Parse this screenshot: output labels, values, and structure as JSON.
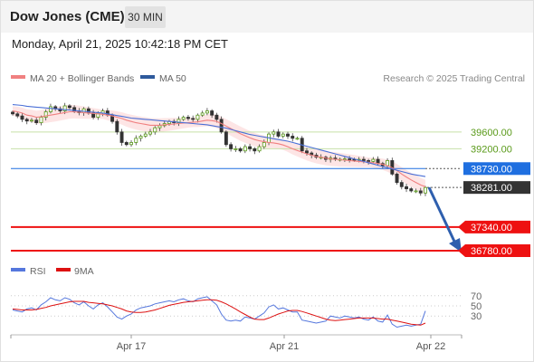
{
  "header": {
    "title": "Dow Jones (CME)",
    "timeframe": "30 MIN"
  },
  "datetime": "Monday, April 21, 2025 10:42:18 PM CET",
  "legend": {
    "ma20": "MA 20 + Bollinger Bands",
    "ma50": "MA 50",
    "credit": "Research © 2025 Trading Central"
  },
  "rsi_legend": {
    "rsi": "RSI",
    "ma9": "9MA"
  },
  "colors": {
    "ma20": "#f08080",
    "band": "#fde0e0",
    "ma50": "#4a6fd6",
    "legend_ma50": "#2e5a9c",
    "support_line": "#c6e0a8",
    "resistance_label": "#5a9a1a",
    "pivot": "#1f6fe0",
    "target": "#ee1111",
    "current": "#333333",
    "arrow": "#2e5fae",
    "rsi": "#5577dd",
    "rsi_ma": "#dd1111"
  },
  "chart_data": {
    "type": "candlestick",
    "title": "Dow Jones (CME)",
    "timeframe": "30 MIN",
    "ylim": [
      36500,
      40800
    ],
    "x_ticks": [
      "Apr 17",
      "Apr 21",
      "Apr 22"
    ],
    "levels": [
      {
        "label": "39600.00",
        "value": 39600,
        "kind": "resistance"
      },
      {
        "label": "39200.00",
        "value": 39200,
        "kind": "resistance"
      },
      {
        "label": "38730.00",
        "value": 38730,
        "kind": "pivot"
      },
      {
        "label": "38281.00",
        "value": 38281,
        "kind": "current"
      },
      {
        "label": "37340.00",
        "value": 37340,
        "kind": "target"
      },
      {
        "label": "36780.00",
        "value": 36780,
        "kind": "target"
      }
    ],
    "series_close": [
      40030,
      39980,
      39900,
      39860,
      39880,
      39820,
      39950,
      40080,
      40200,
      40150,
      40100,
      40220,
      40180,
      40100,
      40060,
      40150,
      40050,
      39950,
      40050,
      40100,
      40000,
      39850,
      39600,
      39350,
      39300,
      39350,
      39450,
      39500,
      39550,
      39600,
      39700,
      39750,
      39800,
      39850,
      39820,
      39900,
      39950,
      39920,
      39900,
      40000,
      40050,
      40100,
      40000,
      39900,
      39600,
      39300,
      39200,
      39200,
      39150,
      39250,
      39200,
      39150,
      39250,
      39350,
      39550,
      39600,
      39500,
      39550,
      39500,
      39450,
      39450,
      39150,
      39100,
      39050,
      39000,
      39000,
      38950,
      38980,
      38950,
      38950,
      38960,
      38950,
      38930,
      38950,
      38920,
      38900,
      38950,
      38850,
      38800,
      38920,
      38600,
      38400,
      38300,
      38250,
      38200,
      38200,
      38150,
      38280
    ],
    "ma20": [
      40100,
      40080,
      40050,
      40000,
      39980,
      39950,
      39960,
      39980,
      40000,
      40020,
      40040,
      40060,
      40080,
      40080,
      40070,
      40060,
      40050,
      40040,
      40030,
      40020,
      40000,
      39980,
      39950,
      39920,
      39880,
      39850,
      39820,
      39800,
      39780,
      39760,
      39760,
      39760,
      39770,
      39780,
      39790,
      39800,
      39810,
      39820,
      39830,
      39840,
      39860,
      39880,
      39870,
      39850,
      39800,
      39740,
      39680,
      39620,
      39560,
      39510,
      39460,
      39420,
      39390,
      39370,
      39350,
      39340,
      39320,
      39290,
      39250,
      39200,
      39160,
      39120,
      39080,
      39050,
      39020,
      39000,
      38980,
      38960,
      38950,
      38940,
      38930,
      38920,
      38910,
      38900,
      38890,
      38880,
      38870,
      38850,
      38830,
      38800,
      38750,
      38680,
      38600,
      38530,
      38460,
      38400,
      38340,
      38300
    ],
    "ma50": [
      40250,
      40240,
      40230,
      40210,
      40200,
      40190,
      40180,
      40170,
      40160,
      40150,
      40140,
      40130,
      40120,
      40110,
      40100,
      40090,
      40080,
      40070,
      40060,
      40050,
      40030,
      40010,
      39990,
      39970,
      39950,
      39930,
      39920,
      39910,
      39900,
      39890,
      39880,
      39870,
      39860,
      39850,
      39840,
      39830,
      39820,
      39810,
      39800,
      39790,
      39780,
      39770,
      39750,
      39730,
      39710,
      39690,
      39660,
      39630,
      39600,
      39570,
      39540,
      39520,
      39500,
      39480,
      39460,
      39440,
      39420,
      39400,
      39380,
      39350,
      39320,
      39290,
      39260,
      39230,
      39200,
      39170,
      39140,
      39110,
      39080,
      39050,
      39020,
      38990,
      38960,
      38930,
      38900,
      38870,
      38840,
      38810,
      38780,
      38750,
      38720,
      38690,
      38660,
      38630,
      38600,
      38580,
      38560,
      38540
    ],
    "rsi": {
      "levels": [
        70,
        50,
        30
      ],
      "ylim": [
        0,
        100
      ],
      "values": [
        42,
        40,
        38,
        44,
        46,
        42,
        52,
        58,
        66,
        62,
        60,
        66,
        63,
        56,
        52,
        58,
        50,
        44,
        52,
        56,
        48,
        38,
        28,
        24,
        30,
        34,
        42,
        46,
        48,
        50,
        54,
        56,
        58,
        60,
        58,
        62,
        64,
        60,
        58,
        64,
        66,
        68,
        60,
        52,
        34,
        22,
        20,
        22,
        20,
        28,
        26,
        24,
        30,
        36,
        48,
        52,
        44,
        46,
        42,
        38,
        38,
        22,
        20,
        18,
        16,
        18,
        20,
        30,
        28,
        26,
        30,
        28,
        26,
        28,
        24,
        22,
        28,
        20,
        18,
        32,
        14,
        8,
        10,
        12,
        10,
        12,
        14,
        40
      ],
      "ma9": [
        44,
        43,
        42,
        42,
        42,
        43,
        45,
        47,
        50,
        52,
        54,
        56,
        58,
        59,
        59,
        59,
        57,
        56,
        55,
        54,
        52,
        50,
        47,
        44,
        40,
        38,
        37,
        37,
        38,
        40,
        42,
        45,
        48,
        51,
        53,
        55,
        57,
        58,
        59,
        60,
        61,
        62,
        62,
        61,
        58,
        54,
        49,
        44,
        38,
        33,
        28,
        24,
        23,
        23,
        26,
        30,
        34,
        37,
        40,
        41,
        41,
        39,
        36,
        33,
        30,
        27,
        24,
        22,
        21,
        22,
        23,
        24,
        25,
        26,
        26,
        26,
        26,
        25,
        24,
        24,
        22,
        20,
        18,
        16,
        14,
        13,
        12,
        16
      ]
    }
  }
}
